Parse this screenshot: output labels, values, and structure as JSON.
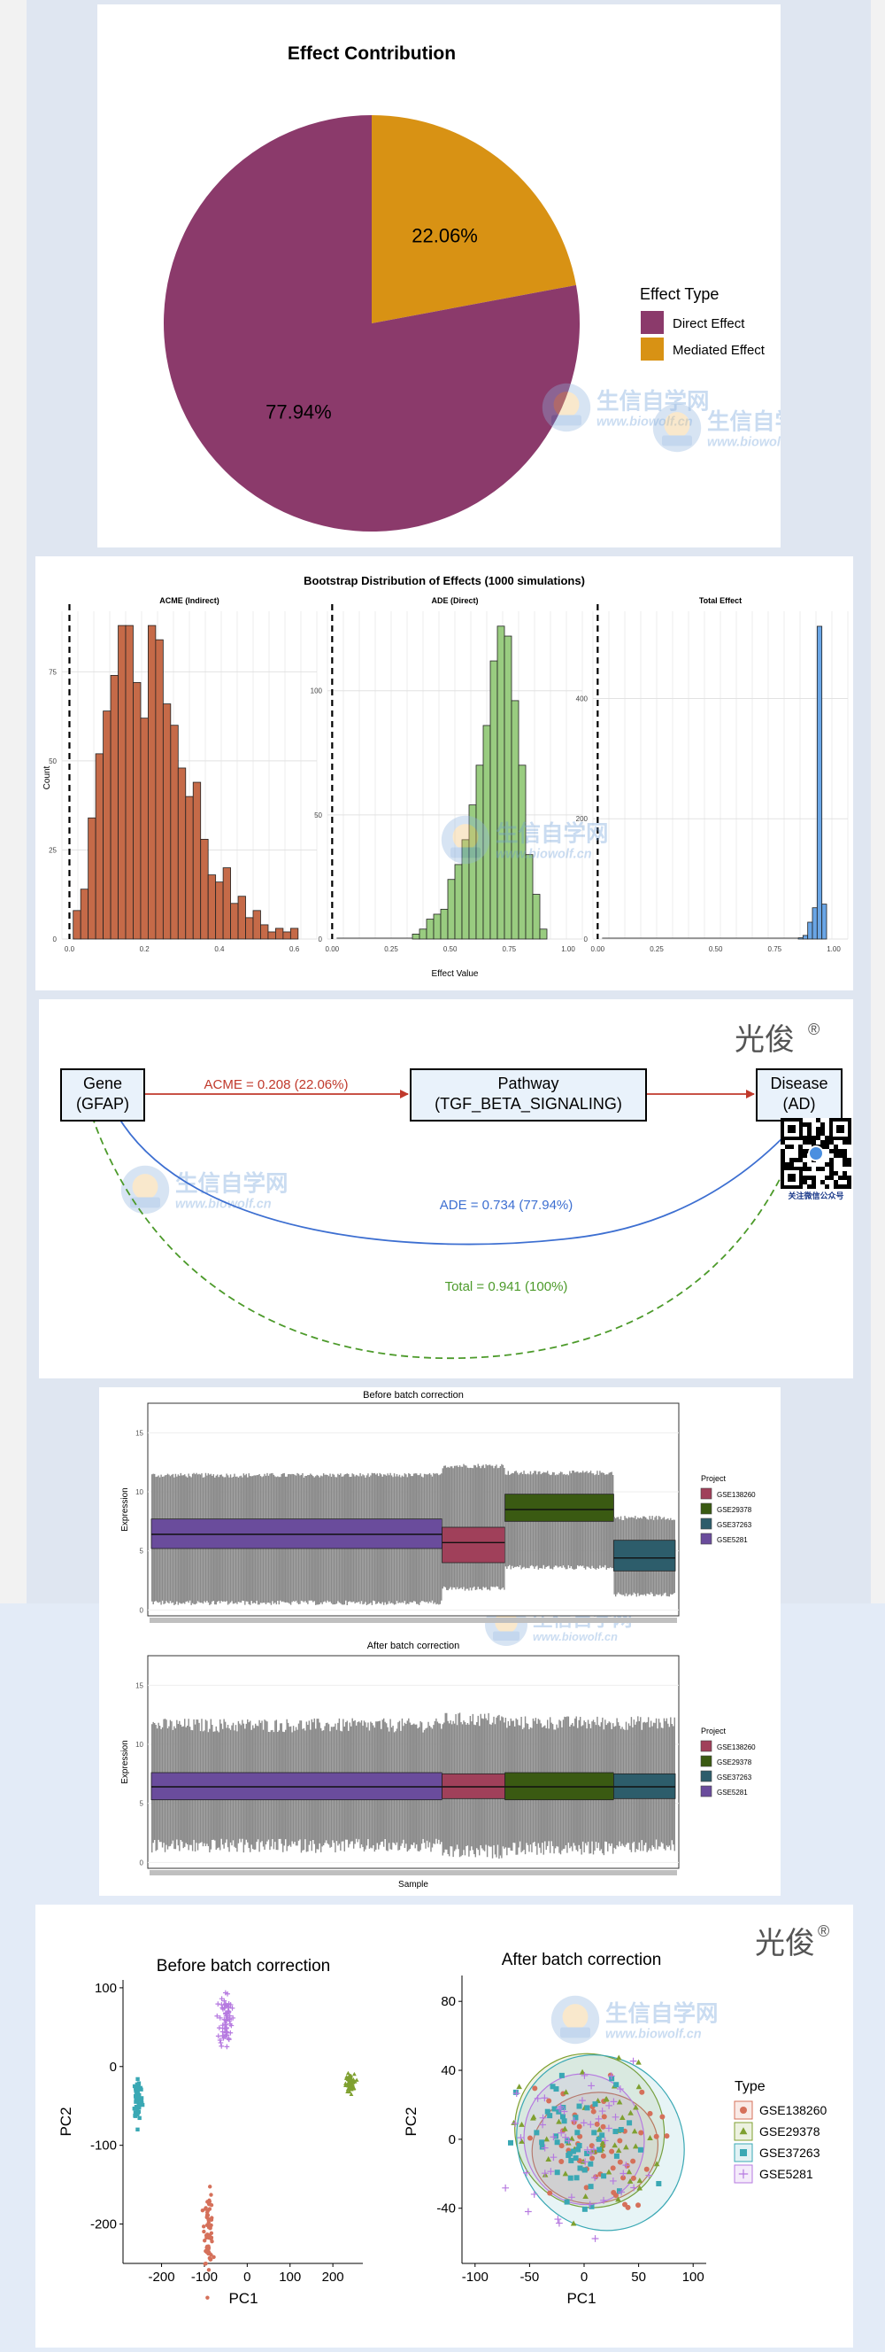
{
  "colors": {
    "direct": "#8b3a6b",
    "mediated": "#d89214",
    "acme_hist": "#c56a48",
    "ade_hist": "#99cc80",
    "total_hist": "#6aa6e6",
    "red_arrow": "#c0392b",
    "blue_arrow": "#3d6fd1",
    "green_arrow": "#4c9a2a",
    "proj1": "#a0405a",
    "proj2": "#3a5a12",
    "proj3": "#2d5d6b",
    "proj4": "#6a4c9c",
    "pca1": "#d5705a",
    "pca2": "#7fa030",
    "pca3": "#3aa8b4",
    "pca4": "#b67ae0"
  },
  "watermark": {
    "name": "生信自学网",
    "url": "www.biowolf.cn"
  },
  "brand": {
    "mark": "光俊",
    "reg": "®",
    "qr_caption": "关注微信公众号"
  },
  "chart_data": [
    {
      "type": "pie",
      "title": "Effect Contribution",
      "legend_title": "Effect Type",
      "legend_position": "right",
      "slices": [
        {
          "label": "Direct Effect",
          "value": 77.94,
          "text": "77.94%"
        },
        {
          "label": "Mediated Effect",
          "value": 22.06,
          "text": "22.06%"
        }
      ]
    },
    {
      "type": "bar",
      "title": "Bootstrap Distribution of Effects (1000 simulations)",
      "xlabel": "Effect Value",
      "ylabel": "Count",
      "facets": [
        {
          "name": "ACME (Indirect)",
          "xlim": [
            -0.02,
            0.66
          ],
          "ylim": [
            0,
            92
          ],
          "xticks": [
            "0.0",
            "0.2",
            "0.4",
            "0.6"
          ],
          "xtick_vals": [
            0,
            0.2,
            0.4,
            0.6
          ],
          "yticks": [
            "0",
            "25",
            "50",
            "75"
          ],
          "ytick_vals": [
            0,
            25,
            50,
            75
          ],
          "bin_start": 0.01,
          "bin_width": 0.02,
          "counts": [
            8,
            14,
            34,
            52,
            64,
            74,
            88,
            88,
            72,
            62,
            88,
            84,
            66,
            60,
            48,
            40,
            44,
            28,
            18,
            16,
            20,
            10,
            12,
            6,
            8,
            4,
            2,
            3,
            2,
            3
          ]
        },
        {
          "name": "ADE (Direct)",
          "xlim": [
            -0.02,
            1.06
          ],
          "ylim": [
            0,
            132
          ],
          "xticks": [
            "0.00",
            "0.25",
            "0.50",
            "0.75",
            "1.00"
          ],
          "xtick_vals": [
            0,
            0.25,
            0.5,
            0.75,
            1.0
          ],
          "yticks": [
            "0",
            "50",
            "100"
          ],
          "ytick_vals": [
            0,
            50,
            100
          ],
          "bin_start": 0.34,
          "bin_width": 0.03,
          "counts": [
            2,
            4,
            8,
            10,
            12,
            24,
            30,
            40,
            54,
            70,
            86,
            112,
            126,
            122,
            96,
            70,
            34,
            18,
            4
          ]
        },
        {
          "name": "Total Effect",
          "xlim": [
            -0.02,
            1.06
          ],
          "ylim": [
            0,
            545
          ],
          "xticks": [
            "0.00",
            "0.25",
            "0.50",
            "0.75",
            "1.00"
          ],
          "xtick_vals": [
            0,
            0.25,
            0.5,
            0.75,
            1.0
          ],
          "yticks": [
            "0",
            "200",
            "400"
          ],
          "ytick_vals": [
            0,
            200,
            400
          ],
          "bin_start": 0.85,
          "bin_width": 0.02,
          "counts": [
            2,
            6,
            28,
            52,
            520,
            58
          ]
        }
      ]
    },
    {
      "type": "diagram",
      "nodes": {
        "gene": [
          "Gene",
          "(GFAP)"
        ],
        "pathway": [
          "Pathway",
          "(TGF_BETA_SIGNALING)"
        ],
        "disease": [
          "Disease",
          "(AD)"
        ]
      },
      "edges": {
        "acme": "ACME = 0.208 (22.06%)",
        "ade": "ADE = 0.734 (77.94%)",
        "total": "Total = 0.941 (100%)"
      }
    },
    {
      "type": "boxplot",
      "title": "Before batch correction",
      "ylabel": "Expression",
      "ylim": [
        -0.5,
        17.5
      ],
      "yticks": [
        "0",
        "5",
        "10",
        "15"
      ],
      "ytick_vals": [
        0,
        5,
        10,
        15
      ],
      "legend_title": "Project",
      "legend": [
        "GSE138260",
        "GSE29378",
        "GSE37263",
        "GSE5281"
      ],
      "groups": [
        {
          "project": "GSE5281",
          "box_low": 5.2,
          "box_high": 7.7,
          "median": 6.4,
          "whisk_low": 0.8,
          "whisk_high": 11.2
        },
        {
          "project": "GSE138260",
          "box_low": 4.0,
          "box_high": 7.0,
          "median": 5.7,
          "whisk_low": 2.0,
          "whisk_high": 12.0
        },
        {
          "project": "GSE29378",
          "box_low": 7.5,
          "box_high": 9.8,
          "median": 8.5,
          "whisk_low": 3.8,
          "whisk_high": 11.4
        },
        {
          "project": "GSE37263",
          "box_low": 3.3,
          "box_high": 5.9,
          "median": 4.4,
          "whisk_low": 1.5,
          "whisk_high": 7.6
        }
      ]
    },
    {
      "type": "boxplot",
      "title": "After batch correction",
      "xlabel": "Sample",
      "ylabel": "Expression",
      "ylim": [
        -0.5,
        17.5
      ],
      "yticks": [
        "0",
        "5",
        "10",
        "15"
      ],
      "ytick_vals": [
        0,
        5,
        10,
        15
      ],
      "legend_title": "Project",
      "legend": [
        "GSE138260",
        "GSE29378",
        "GSE37263",
        "GSE5281"
      ],
      "groups": [
        {
          "project": "GSE5281",
          "box_low": 5.3,
          "box_high": 7.6,
          "median": 6.4,
          "whisk_low": 2.0,
          "whisk_high": 11.0
        },
        {
          "project": "GSE138260",
          "box_low": 5.4,
          "box_high": 7.5,
          "median": 6.4,
          "whisk_low": 1.5,
          "whisk_high": 11.5
        },
        {
          "project": "GSE29378",
          "box_low": 5.3,
          "box_high": 7.6,
          "median": 6.4,
          "whisk_low": 1.8,
          "whisk_high": 11.2
        },
        {
          "project": "GSE37263",
          "box_low": 5.4,
          "box_high": 7.5,
          "median": 6.4,
          "whisk_low": 2.0,
          "whisk_high": 11.2
        }
      ]
    },
    {
      "type": "scatter",
      "title": "Before batch correction",
      "xlabel": "PC1",
      "ylabel": "PC2",
      "xlim": [
        -290,
        270
      ],
      "ylim": [
        -250,
        110
      ],
      "xticks": [
        "-200",
        "-100",
        "0",
        "100",
        "200"
      ],
      "xtick_vals": [
        -200,
        -100,
        0,
        100,
        200
      ],
      "yticks": [
        "100",
        "0",
        "-100",
        "-200"
      ],
      "ytick_vals": [
        100,
        0,
        -100,
        -200
      ],
      "clusters": [
        {
          "series": "GSE138260",
          "center": [
            -90,
            -205
          ],
          "spread": [
            5,
            22
          ]
        },
        {
          "series": "GSE29378",
          "center": [
            240,
            -22
          ],
          "spread": [
            5,
            6
          ]
        },
        {
          "series": "GSE37263",
          "center": [
            -255,
            -40
          ],
          "spread": [
            5,
            14
          ]
        },
        {
          "series": "GSE5281",
          "center": [
            -50,
            60
          ],
          "spread": [
            7,
            18
          ]
        }
      ]
    },
    {
      "type": "scatter",
      "title": "After batch correction",
      "xlabel": "PC1",
      "ylabel": "PC2",
      "xlim": [
        -112,
        112
      ],
      "ylim": [
        -72,
        95
      ],
      "xticks": [
        "-100",
        "-50",
        "0",
        "50",
        "100"
      ],
      "xtick_vals": [
        -100,
        -50,
        0,
        50,
        100
      ],
      "yticks": [
        "80",
        "40",
        "0",
        "-40"
      ],
      "ytick_vals": [
        80,
        40,
        0,
        -40
      ],
      "legend_title": "Type",
      "legend": [
        "GSE138260",
        "GSE29378",
        "GSE37263",
        "GSE5281"
      ],
      "ellipses": [
        {
          "series": "GSE138260",
          "center": [
            10,
            -5
          ],
          "radii": [
            58,
            32
          ],
          "angle": -12
        },
        {
          "series": "GSE29378",
          "center": [
            5,
            5
          ],
          "radii": [
            68,
            45
          ],
          "angle": -25
        },
        {
          "series": "GSE37263",
          "center": [
            15,
            -2
          ],
          "radii": [
            75,
            52
          ],
          "angle": -30
        },
        {
          "series": "GSE5281",
          "center": [
            0,
            0
          ],
          "radii": [
            55,
            38
          ],
          "angle": -10
        }
      ],
      "clusters": [
        {
          "series": "GSE138260",
          "center": [
            5,
            -5
          ],
          "spread": [
            30,
            18
          ]
        },
        {
          "series": "GSE29378",
          "center": [
            5,
            0
          ],
          "spread": [
            32,
            22
          ]
        },
        {
          "series": "GSE37263",
          "center": [
            0,
            -5
          ],
          "spread": [
            30,
            22
          ]
        },
        {
          "series": "GSE5281",
          "center": [
            -5,
            0
          ],
          "spread": [
            30,
            22
          ]
        }
      ]
    }
  ]
}
